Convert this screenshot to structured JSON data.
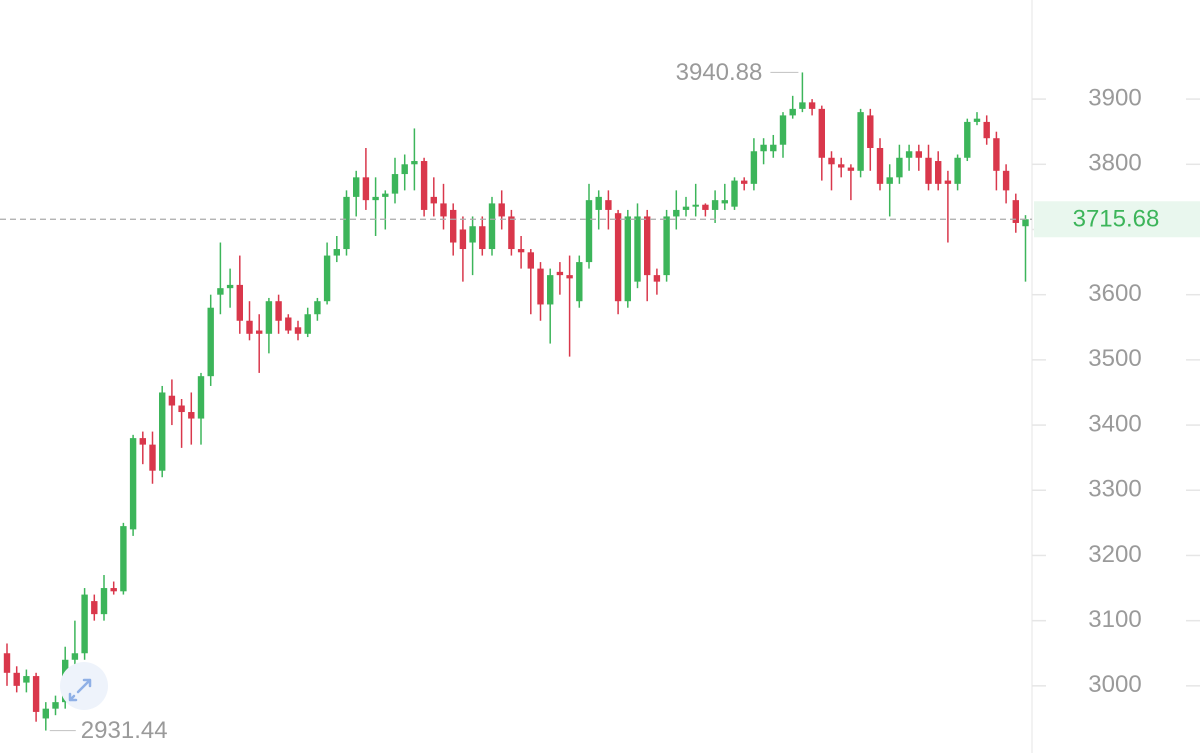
{
  "chart_data": {
    "type": "candlestick",
    "up_color": "#3cb55a",
    "down_color": "#d9374b",
    "open": [
      3050,
      3020,
      3005,
      3015,
      2950,
      2965,
      2975,
      3040,
      3050,
      3130,
      3110,
      3150,
      3145,
      3240,
      3380,
      3370,
      3330,
      3445,
      3430,
      3420,
      3410,
      3475,
      3600,
      3610,
      3615,
      3560,
      3545,
      3540,
      3590,
      3565,
      3550,
      3540,
      3570,
      3590,
      3660,
      3670,
      3750,
      3780,
      3745,
      3750,
      3755,
      3785,
      3800,
      3805,
      3750,
      3740,
      3730,
      3700,
      3680,
      3705,
      3670,
      3740,
      3720,
      3670,
      3665,
      3640,
      3585,
      3635,
      3630,
      3590,
      3650,
      3730,
      3745,
      3725,
      3590,
      3620,
      3720,
      3630,
      3630,
      3720,
      3730,
      3735,
      3738,
      3730,
      3740,
      3735,
      3775,
      3770,
      3820,
      3820,
      3830,
      3875,
      3885,
      3895,
      3885,
      3810,
      3800,
      3795,
      3790,
      3875,
      3825,
      3770,
      3780,
      3810,
      3820,
      3810,
      3805,
      3775,
      3770,
      3810,
      3865,
      3865,
      3840,
      3790,
      3745,
      3705
    ],
    "high": [
      3065,
      3030,
      3025,
      3020,
      2975,
      2985,
      3060,
      3100,
      3150,
      3140,
      3170,
      3160,
      3250,
      3385,
      3390,
      3390,
      3460,
      3470,
      3440,
      3450,
      3480,
      3600,
      3680,
      3640,
      3660,
      3590,
      3570,
      3595,
      3600,
      3570,
      3560,
      3580,
      3595,
      3680,
      3690,
      3760,
      3790,
      3825,
      3780,
      3760,
      3810,
      3815,
      3855,
      3810,
      3780,
      3770,
      3740,
      3720,
      3720,
      3720,
      3750,
      3760,
      3730,
      3690,
      3670,
      3650,
      3640,
      3650,
      3660,
      3660,
      3770,
      3760,
      3760,
      3730,
      3730,
      3740,
      3730,
      3640,
      3730,
      3760,
      3750,
      3770,
      3740,
      3760,
      3770,
      3780,
      3780,
      3840,
      3840,
      3845,
      3880,
      3905,
      3940.88,
      3900,
      3890,
      3820,
      3810,
      3800,
      3885,
      3885,
      3840,
      3800,
      3830,
      3830,
      3830,
      3830,
      3820,
      3790,
      3815,
      3870,
      3880,
      3875,
      3850,
      3800,
      3755,
      3722
    ],
    "low": [
      3000,
      2990,
      2990,
      2945,
      2931.44,
      2955,
      2965,
      3030,
      3040,
      3100,
      3100,
      3140,
      3140,
      3230,
      3340,
      3310,
      3320,
      3400,
      3365,
      3370,
      3370,
      3460,
      3570,
      3580,
      3540,
      3530,
      3480,
      3510,
      3540,
      3540,
      3530,
      3535,
      3560,
      3585,
      3650,
      3660,
      3720,
      3730,
      3690,
      3700,
      3740,
      3760,
      3760,
      3720,
      3720,
      3700,
      3660,
      3620,
      3630,
      3660,
      3660,
      3700,
      3660,
      3640,
      3570,
      3560,
      3525,
      3600,
      3505,
      3580,
      3640,
      3700,
      3700,
      3570,
      3580,
      3610,
      3590,
      3600,
      3620,
      3700,
      3720,
      3720,
      3720,
      3710,
      3730,
      3730,
      3760,
      3760,
      3800,
      3810,
      3810,
      3870,
      3880,
      3875,
      3775,
      3760,
      3780,
      3745,
      3780,
      3790,
      3760,
      3720,
      3770,
      3790,
      3790,
      3760,
      3760,
      3680,
      3760,
      3805,
      3860,
      3830,
      3760,
      3740,
      3695,
      3620
    ],
    "close": [
      3020,
      3000,
      3015,
      2960,
      2965,
      2975,
      3040,
      3050,
      3140,
      3110,
      3150,
      3145,
      3245,
      3380,
      3370,
      3330,
      3450,
      3430,
      3420,
      3410,
      3475,
      3580,
      3610,
      3615,
      3560,
      3540,
      3540,
      3590,
      3560,
      3545,
      3540,
      3570,
      3590,
      3660,
      3670,
      3750,
      3780,
      3745,
      3750,
      3755,
      3785,
      3800,
      3805,
      3730,
      3740,
      3720,
      3680,
      3670,
      3705,
      3670,
      3740,
      3720,
      3670,
      3665,
      3640,
      3585,
      3630,
      3630,
      3625,
      3650,
      3745,
      3750,
      3730,
      3590,
      3720,
      3720,
      3630,
      3620,
      3720,
      3730,
      3735,
      3738,
      3730,
      3745,
      3745,
      3775,
      3770,
      3820,
      3830,
      3830,
      3875,
      3885,
      3895,
      3885,
      3810,
      3800,
      3795,
      3790,
      3880,
      3825,
      3770,
      3780,
      3810,
      3820,
      3810,
      3770,
      3770,
      3770,
      3810,
      3865,
      3870,
      3840,
      3790,
      3760,
      3710,
      3715.68
    ],
    "ylim": [
      2897,
      4052
    ],
    "yticks": [
      3000,
      3100,
      3200,
      3300,
      3400,
      3500,
      3600,
      3700,
      3800,
      3900
    ]
  }
}
